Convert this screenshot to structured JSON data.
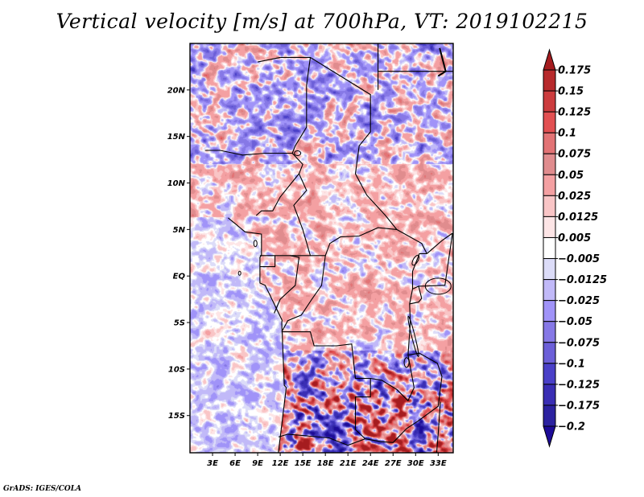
{
  "title": "Vertical velocity [m/s] at 700hPa, VT: 2019102215",
  "footer": "GrADS: IGES/COLA",
  "chart_data": {
    "type": "heatmap",
    "title": "Vertical velocity [m/s] at 700hPa, VT: 2019102215",
    "variable": "Vertical velocity",
    "units": "m/s",
    "level": "700hPa",
    "valid_time": "2019102215",
    "xlabel": "",
    "ylabel": "",
    "x_range_deg_east": [
      0,
      35
    ],
    "y_range_deg_north": [
      -19,
      25
    ],
    "x_ticks": [
      "3E",
      "6E",
      "9E",
      "12E",
      "15E",
      "18E",
      "21E",
      "24E",
      "27E",
      "30E",
      "33E"
    ],
    "x_tick_values": [
      3,
      6,
      9,
      12,
      15,
      18,
      21,
      24,
      27,
      30,
      33
    ],
    "y_ticks": [
      "20N",
      "15N",
      "10N",
      "5N",
      "EQ",
      "5S",
      "10S",
      "15S"
    ],
    "y_tick_values": [
      20,
      15,
      10,
      5,
      0,
      -5,
      -10,
      -15
    ],
    "legend": {
      "placement": "right",
      "orientation": "vertical",
      "levels": [
        "0.175",
        "0.15",
        "0.125",
        "0.1",
        "0.075",
        "0.05",
        "0.025",
        "0.0125",
        "0.005",
        "−0.005",
        "−0.0125",
        "−0.025",
        "−0.05",
        "−0.075",
        "−0.1",
        "−0.125",
        "−0.175",
        "−0.2"
      ],
      "colors": [
        "#a51c1f",
        "#b72a2c",
        "#cc3c3e",
        "#e25052",
        "#e27375",
        "#e08c8e",
        "#f4a0a2",
        "#f9c5c6",
        "#fde5e6",
        "#ffffff",
        "#dcdcf8",
        "#c1b9f8",
        "#a093f8",
        "#8678e6",
        "#6c5fd8",
        "#4a40c8",
        "#3a2eb4",
        "#2c22a0",
        "#1d0b98"
      ],
      "top_arrow_color": "#a51c1f",
      "bottom_arrow_color": "#1d0b98"
    },
    "regions": {
      "ocean_west": "weak, mostly slightly negative (light blue/white) with scattered weak positive",
      "sahara_north": "mixed streaks of weak positive and negative, ~±0.05",
      "central_africa": "predominantly weak positive (light red) ~0.0125–0.05",
      "southern_africa": "strong mixed values, dark red and dark blue, exceeding ±0.175"
    }
  }
}
